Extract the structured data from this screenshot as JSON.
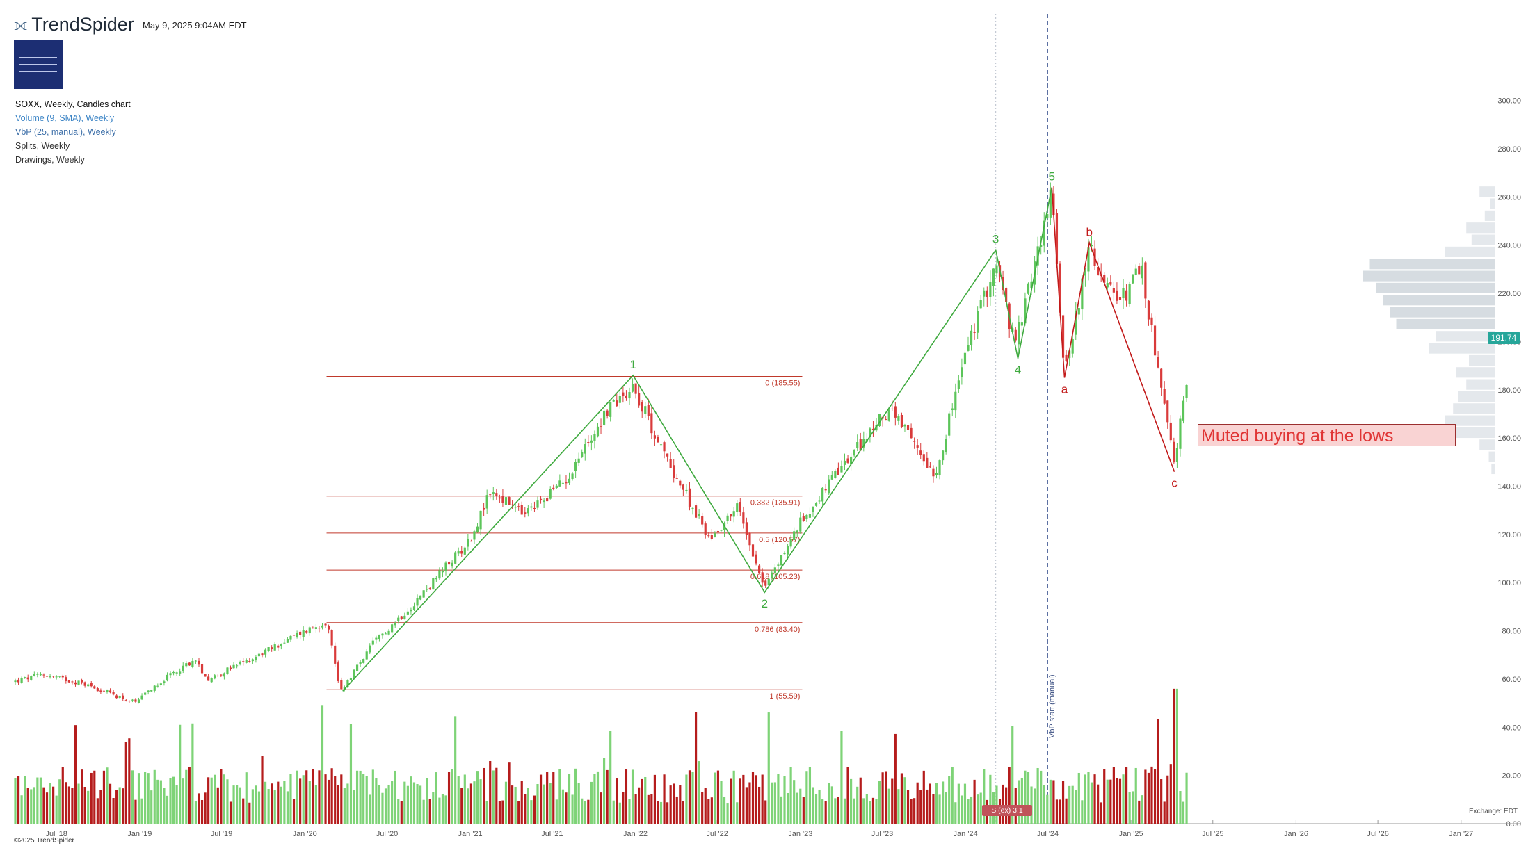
{
  "header": {
    "brand": "TrendSpider",
    "timestamp": "May 9, 2025 9:04AM EDT"
  },
  "studies": [
    "SOXX, Weekly, Candles chart",
    "Volume (9, SMA), Weekly",
    "VbP (25, manual), Weekly",
    "Splits, Weekly",
    "Drawings, Weekly"
  ],
  "footer": {
    "copyright": "©2025 TrendSpider",
    "exchange": "Exchange: EDT"
  },
  "annotations": {
    "note": "Muted buying at the lows",
    "vbp_start": "VbP start (manual)",
    "split": "S (ex) 3:1",
    "last_price": "191.74"
  },
  "colors": {
    "up": "#5cc55a",
    "down": "#d93b3b",
    "up_vol": "#7ed377",
    "down_vol": "#b51c1c",
    "wave": "#3faa3f",
    "corr": "#c21a1a",
    "fib": "#c0392b",
    "vbp": "#e4e8ec",
    "vbp_dark": "#d6dce1"
  },
  "chart_data": {
    "type": "candlestick",
    "symbol": "SOXX",
    "interval": "Weekly",
    "x_range": [
      "2018-04-01",
      "2027-02-15"
    ],
    "y_range": [
      0,
      310
    ],
    "y_ticks": [
      0,
      20,
      40,
      60,
      80,
      100,
      120,
      140,
      160,
      180,
      200,
      220,
      240,
      260,
      280,
      300
    ],
    "x_ticks": [
      {
        "label": "Jul '18",
        "date": "2018-07-01"
      },
      {
        "label": "Jan '19",
        "date": "2019-01-01"
      },
      {
        "label": "Jul '19",
        "date": "2019-07-01"
      },
      {
        "label": "Jan '20",
        "date": "2020-01-01"
      },
      {
        "label": "Jul '20",
        "date": "2020-07-01"
      },
      {
        "label": "Jan '21",
        "date": "2021-01-01"
      },
      {
        "label": "Jul '21",
        "date": "2021-07-01"
      },
      {
        "label": "Jan '22",
        "date": "2022-01-01"
      },
      {
        "label": "Jul '22",
        "date": "2022-07-01"
      },
      {
        "label": "Jan '23",
        "date": "2023-01-01"
      },
      {
        "label": "Jul '23",
        "date": "2023-07-01"
      },
      {
        "label": "Jan '24",
        "date": "2024-01-01"
      },
      {
        "label": "Jul '24",
        "date": "2024-07-01"
      },
      {
        "label": "Jan '25",
        "date": "2025-01-01"
      },
      {
        "label": "Jul '25",
        "date": "2025-07-01"
      },
      {
        "label": "Jan '26",
        "date": "2026-01-01"
      },
      {
        "label": "Jul '26",
        "date": "2026-07-01"
      },
      {
        "label": "Jan '27",
        "date": "2027-01-01"
      }
    ],
    "close_anchors": [
      [
        "2018-04-01",
        59
      ],
      [
        "2018-06-01",
        62
      ],
      [
        "2018-09-01",
        58
      ],
      [
        "2018-12-24",
        50
      ],
      [
        "2019-02-01",
        57
      ],
      [
        "2019-05-01",
        68
      ],
      [
        "2019-06-01",
        60
      ],
      [
        "2019-09-01",
        68
      ],
      [
        "2020-01-01",
        80
      ],
      [
        "2020-02-19",
        84
      ],
      [
        "2020-03-20",
        55
      ],
      [
        "2020-06-01",
        75
      ],
      [
        "2020-09-01",
        92
      ],
      [
        "2021-01-01",
        118
      ],
      [
        "2021-02-15",
        138
      ],
      [
        "2021-05-01",
        128
      ],
      [
        "2021-08-01",
        143
      ],
      [
        "2021-11-01",
        172
      ],
      [
        "2021-12-27",
        182
      ],
      [
        "2022-03-01",
        155
      ],
      [
        "2022-06-15",
        118
      ],
      [
        "2022-08-15",
        132
      ],
      [
        "2022-10-14",
        98
      ],
      [
        "2023-01-01",
        125
      ],
      [
        "2023-03-01",
        140
      ],
      [
        "2023-07-15",
        172
      ],
      [
        "2023-10-27",
        145
      ],
      [
        "2024-01-01",
        195
      ],
      [
        "2024-03-08",
        233
      ],
      [
        "2024-04-19",
        198
      ],
      [
        "2024-07-10",
        262
      ],
      [
        "2024-08-07",
        188
      ],
      [
        "2024-10-01",
        238
      ],
      [
        "2024-12-01",
        215
      ],
      [
        "2025-01-24",
        230
      ],
      [
        "2025-04-07",
        148
      ],
      [
        "2025-05-09",
        191.74
      ]
    ],
    "volume_range": [
      0,
      60
    ],
    "vbp_rows": [
      {
        "price": 262,
        "volume": 0.12
      },
      {
        "price": 257,
        "volume": 0.04
      },
      {
        "price": 252,
        "volume": 0.08
      },
      {
        "price": 247,
        "volume": 0.22
      },
      {
        "price": 242,
        "volume": 0.18
      },
      {
        "price": 237,
        "volume": 0.38
      },
      {
        "price": 232,
        "volume": 0.95
      },
      {
        "price": 227,
        "volume": 1.0
      },
      {
        "price": 222,
        "volume": 0.9
      },
      {
        "price": 217,
        "volume": 0.85
      },
      {
        "price": 212,
        "volume": 0.8
      },
      {
        "price": 207,
        "volume": 0.75
      },
      {
        "price": 202,
        "volume": 0.45
      },
      {
        "price": 197,
        "volume": 0.5
      },
      {
        "price": 192,
        "volume": 0.2
      },
      {
        "price": 187,
        "volume": 0.3
      },
      {
        "price": 182,
        "volume": 0.22
      },
      {
        "price": 177,
        "volume": 0.28
      },
      {
        "price": 172,
        "volume": 0.32
      },
      {
        "price": 167,
        "volume": 0.38
      },
      {
        "price": 162,
        "volume": 0.4
      },
      {
        "price": 157,
        "volume": 0.12
      },
      {
        "price": 152,
        "volume": 0.05
      },
      {
        "price": 147,
        "volume": 0.03
      }
    ],
    "fib_levels": [
      {
        "label": "0 (185.55)",
        "price": 185.55
      },
      {
        "label": "0.382 (135.91)",
        "price": 135.91
      },
      {
        "label": "0.5 (120.57)",
        "price": 120.57
      },
      {
        "label": "0.618 (105.23)",
        "price": 105.23
      },
      {
        "label": "0.786 (83.40)",
        "price": 83.4
      },
      {
        "label": "1 (55.59)",
        "price": 55.59
      }
    ],
    "fib_range": [
      "2020-03-20",
      "2022-11-20"
    ],
    "impulse_wave": [
      {
        "label": "",
        "date": "2020-03-25",
        "price": 55
      },
      {
        "label": "1",
        "date": "2021-12-27",
        "price": 186
      },
      {
        "label": "2",
        "date": "2022-10-14",
        "price": 96
      },
      {
        "label": "3",
        "date": "2024-03-08",
        "price": 238
      },
      {
        "label": "4",
        "date": "2024-04-26",
        "price": 193
      },
      {
        "label": "5",
        "date": "2024-07-10",
        "price": 264
      }
    ],
    "correction_wave": [
      {
        "label": "",
        "date": "2024-07-10",
        "price": 264
      },
      {
        "label": "a",
        "date": "2024-08-07",
        "price": 185
      },
      {
        "label": "b",
        "date": "2024-10-01",
        "price": 241
      },
      {
        "label": "c",
        "date": "2025-04-07",
        "price": 146
      }
    ],
    "event_lines": [
      {
        "date": "2024-03-08",
        "style": "dotted"
      },
      {
        "date": "2024-07-01",
        "style": "dashed"
      }
    ]
  }
}
